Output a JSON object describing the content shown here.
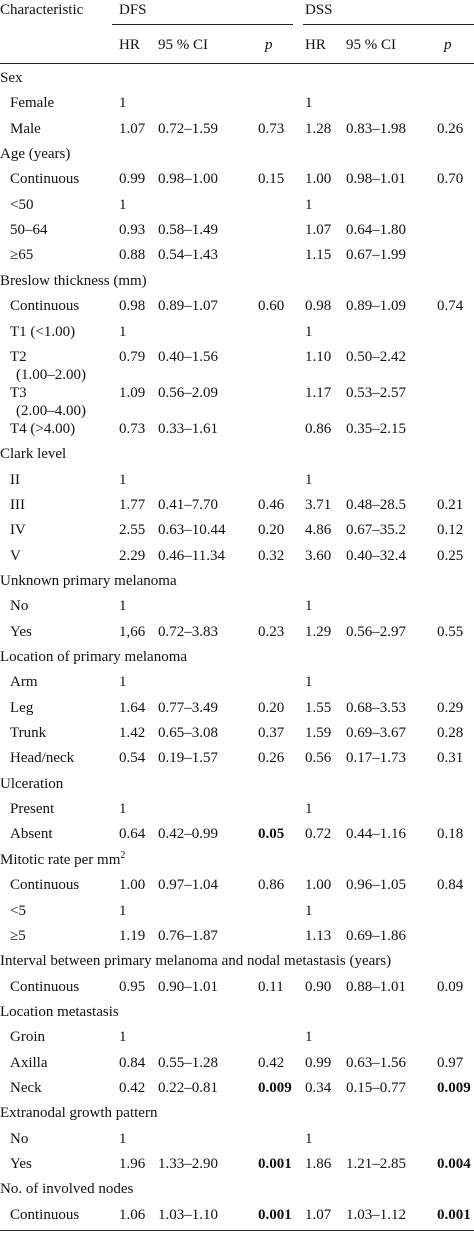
{
  "table": {
    "header": {
      "characteristic": "Characteristic",
      "group1": "DFS",
      "group2": "DSS",
      "hr": "HR",
      "ci": "95 % CI",
      "p": "p"
    },
    "rows": [
      {
        "kind": "section",
        "label": "Sex"
      },
      {
        "kind": "item",
        "label": "Female",
        "dfs_hr": "1",
        "dfs_ci": "",
        "dfs_p": "",
        "dss_hr": "1",
        "dss_ci": "",
        "dss_p": ""
      },
      {
        "kind": "item",
        "label": "Male",
        "dfs_hr": "1.07",
        "dfs_ci": "0.72–1.59",
        "dfs_p": "0.73",
        "dss_hr": "1.28",
        "dss_ci": "0.83–1.98",
        "dss_p": "0.26"
      },
      {
        "kind": "section",
        "label": "Age (years)"
      },
      {
        "kind": "item",
        "label": "Continuous",
        "dfs_hr": "0.99",
        "dfs_ci": "0.98–1.00",
        "dfs_p": "0.15",
        "dss_hr": "1.00",
        "dss_ci": "0.98–1.01",
        "dss_p": "0.70"
      },
      {
        "kind": "item",
        "label": "<50",
        "dfs_hr": "1",
        "dfs_ci": "",
        "dfs_p": "",
        "dss_hr": "1",
        "dss_ci": "",
        "dss_p": ""
      },
      {
        "kind": "item",
        "label": "50–64",
        "dfs_hr": "0.93",
        "dfs_ci": "0.58–1.49",
        "dfs_p": "",
        "dss_hr": "1.07",
        "dss_ci": "0.64–1.80",
        "dss_p": ""
      },
      {
        "kind": "item",
        "label": "≥65",
        "dfs_hr": "0.88",
        "dfs_ci": "0.54–1.43",
        "dfs_p": "",
        "dss_hr": "1.15",
        "dss_ci": "0.67–1.99",
        "dss_p": ""
      },
      {
        "kind": "section",
        "label": "Breslow thickness (mm)"
      },
      {
        "kind": "item",
        "label": "Continuous",
        "dfs_hr": "0.98",
        "dfs_ci": "0.89–1.07",
        "dfs_p": "0.60",
        "dss_hr": "0.98",
        "dss_ci": "0.89–1.09",
        "dss_p": "0.74"
      },
      {
        "kind": "item",
        "label": "T1 (<1.00)",
        "dfs_hr": "1",
        "dfs_ci": "",
        "dfs_p": "",
        "dss_hr": "1",
        "dss_ci": "",
        "dss_p": ""
      },
      {
        "kind": "item",
        "label": "T2",
        "label2": "(1.00–2.00)",
        "dfs_hr": "0.79",
        "dfs_ci": "0.40–1.56",
        "dfs_p": "",
        "dss_hr": "1.10",
        "dss_ci": "0.50–2.42",
        "dss_p": ""
      },
      {
        "kind": "item",
        "label": "T3",
        "label2": "(2.00–4.00)",
        "dfs_hr": "1.09",
        "dfs_ci": "0.56–2.09",
        "dfs_p": "",
        "dss_hr": "1.17",
        "dss_ci": "0.53–2.57",
        "dss_p": ""
      },
      {
        "kind": "item",
        "label": "T4 (>4.00)",
        "dfs_hr": "0.73",
        "dfs_ci": "0.33–1.61",
        "dfs_p": "",
        "dss_hr": "0.86",
        "dss_ci": "0.35–2.15",
        "dss_p": ""
      },
      {
        "kind": "section",
        "label": "Clark level"
      },
      {
        "kind": "item",
        "label": "II",
        "dfs_hr": "1",
        "dfs_ci": "",
        "dfs_p": "",
        "dss_hr": "1",
        "dss_ci": "",
        "dss_p": ""
      },
      {
        "kind": "item",
        "label": "III",
        "dfs_hr": "1.77",
        "dfs_ci": "0.41–7.70",
        "dfs_p": "0.46",
        "dss_hr": "3.71",
        "dss_ci": "0.48–28.5",
        "dss_p": "0.21"
      },
      {
        "kind": "item",
        "label": "IV",
        "dfs_hr": "2.55",
        "dfs_ci": "0.63–10.44",
        "dfs_p": "0.20",
        "dss_hr": "4.86",
        "dss_ci": "0.67–35.2",
        "dss_p": "0.12"
      },
      {
        "kind": "item",
        "label": "V",
        "dfs_hr": "2.29",
        "dfs_ci": "0.46–11.34",
        "dfs_p": "0.32",
        "dss_hr": "3.60",
        "dss_ci": "0.40–32.4",
        "dss_p": "0.25"
      },
      {
        "kind": "section",
        "label": "Unknown primary melanoma"
      },
      {
        "kind": "item",
        "label": "No",
        "dfs_hr": "1",
        "dfs_ci": "",
        "dfs_p": "",
        "dss_hr": "1",
        "dss_ci": "",
        "dss_p": ""
      },
      {
        "kind": "item",
        "label": "Yes",
        "dfs_hr": "1,66",
        "dfs_ci": "0.72–3.83",
        "dfs_p": "0.23",
        "dss_hr": "1.29",
        "dss_ci": "0.56–2.97",
        "dss_p": "0.55"
      },
      {
        "kind": "section",
        "label": "Location of primary melanoma"
      },
      {
        "kind": "item",
        "label": "Arm",
        "dfs_hr": "1",
        "dfs_ci": "",
        "dfs_p": "",
        "dss_hr": "1",
        "dss_ci": "",
        "dss_p": ""
      },
      {
        "kind": "item",
        "label": "Leg",
        "dfs_hr": "1.64",
        "dfs_ci": "0.77–3.49",
        "dfs_p": "0.20",
        "dss_hr": "1.55",
        "dss_ci": "0.68–3.53",
        "dss_p": "0.29"
      },
      {
        "kind": "item",
        "label": "Trunk",
        "dfs_hr": "1.42",
        "dfs_ci": "0.65–3.08",
        "dfs_p": "0.37",
        "dss_hr": "1.59",
        "dss_ci": "0.69–3.67",
        "dss_p": "0.28"
      },
      {
        "kind": "item",
        "label": "Head/neck",
        "dfs_hr": "0.54",
        "dfs_ci": "0.19–1.57",
        "dfs_p": "0.26",
        "dss_hr": "0.56",
        "dss_ci": "0.17–1.73",
        "dss_p": "0.31"
      },
      {
        "kind": "section",
        "label": "Ulceration"
      },
      {
        "kind": "item",
        "label": "Present",
        "dfs_hr": "1",
        "dfs_ci": "",
        "dfs_p": "",
        "dss_hr": "1",
        "dss_ci": "",
        "dss_p": ""
      },
      {
        "kind": "item",
        "label": "Absent",
        "dfs_hr": "0.64",
        "dfs_ci": "0.42–0.99",
        "dfs_p": "0.05",
        "dfs_p_bold": true,
        "dss_hr": "0.72",
        "dss_ci": "0.44–1.16",
        "dss_p": "0.18"
      },
      {
        "kind": "section",
        "label": "Mitotic rate per mm",
        "sup": "2"
      },
      {
        "kind": "item",
        "label": "Continuous",
        "dfs_hr": "1.00",
        "dfs_ci": "0.97–1.04",
        "dfs_p": "0.86",
        "dss_hr": "1.00",
        "dss_ci": "0.96–1.05",
        "dss_p": "0.84"
      },
      {
        "kind": "item",
        "label": "<5",
        "dfs_hr": "1",
        "dfs_ci": "",
        "dfs_p": "",
        "dss_hr": "1",
        "dss_ci": "",
        "dss_p": ""
      },
      {
        "kind": "item",
        "label": "≥5",
        "dfs_hr": "1.19",
        "dfs_ci": "0.76–1.87",
        "dfs_p": "",
        "dss_hr": "1.13",
        "dss_ci": "0.69–1.86",
        "dss_p": ""
      },
      {
        "kind": "section",
        "label": "Interval between primary melanoma and nodal metastasis (years)"
      },
      {
        "kind": "item",
        "label": "Continuous",
        "dfs_hr": "0.95",
        "dfs_ci": "0.90–1.01",
        "dfs_p": "0.11",
        "dss_hr": "0.90",
        "dss_ci": "0.88–1.01",
        "dss_p": "0.09"
      },
      {
        "kind": "section",
        "label": "Location metastasis"
      },
      {
        "kind": "item",
        "label": "Groin",
        "dfs_hr": "1",
        "dfs_ci": "",
        "dfs_p": "",
        "dss_hr": "1",
        "dss_ci": "",
        "dss_p": ""
      },
      {
        "kind": "item",
        "label": "Axilla",
        "dfs_hr": "0.84",
        "dfs_ci": "0.55–1.28",
        "dfs_p": "0.42",
        "dss_hr": "0.99",
        "dss_ci": "0.63–1.56",
        "dss_p": "0.97"
      },
      {
        "kind": "item",
        "label": "Neck",
        "dfs_hr": "0.42",
        "dfs_ci": "0.22–0.81",
        "dfs_p": "0.009",
        "dfs_p_bold": true,
        "dss_hr": "0.34",
        "dss_ci": "0.15–0.77",
        "dss_p": "0.009",
        "dss_p_bold": true
      },
      {
        "kind": "section",
        "label": "Extranodal growth pattern"
      },
      {
        "kind": "item",
        "label": "No",
        "dfs_hr": "1",
        "dfs_ci": "",
        "dfs_p": "",
        "dss_hr": "1",
        "dss_ci": "",
        "dss_p": ""
      },
      {
        "kind": "item",
        "label": "Yes",
        "dfs_hr": "1.96",
        "dfs_ci": "1.33–2.90",
        "dfs_p": "0.001",
        "dfs_p_bold": true,
        "dss_hr": "1.86",
        "dss_ci": "1.21–2.85",
        "dss_p": "0.004",
        "dss_p_bold": true
      },
      {
        "kind": "section",
        "label": "No. of involved nodes"
      },
      {
        "kind": "item",
        "label": "Continuous",
        "dfs_hr": "1.06",
        "dfs_ci": "1.03–1.10",
        "dfs_p": "0.001",
        "dfs_p_bold": true,
        "dss_hr": "1.07",
        "dss_ci": "1.03–1.12",
        "dss_p": "0.001",
        "dss_p_bold": true
      }
    ]
  }
}
